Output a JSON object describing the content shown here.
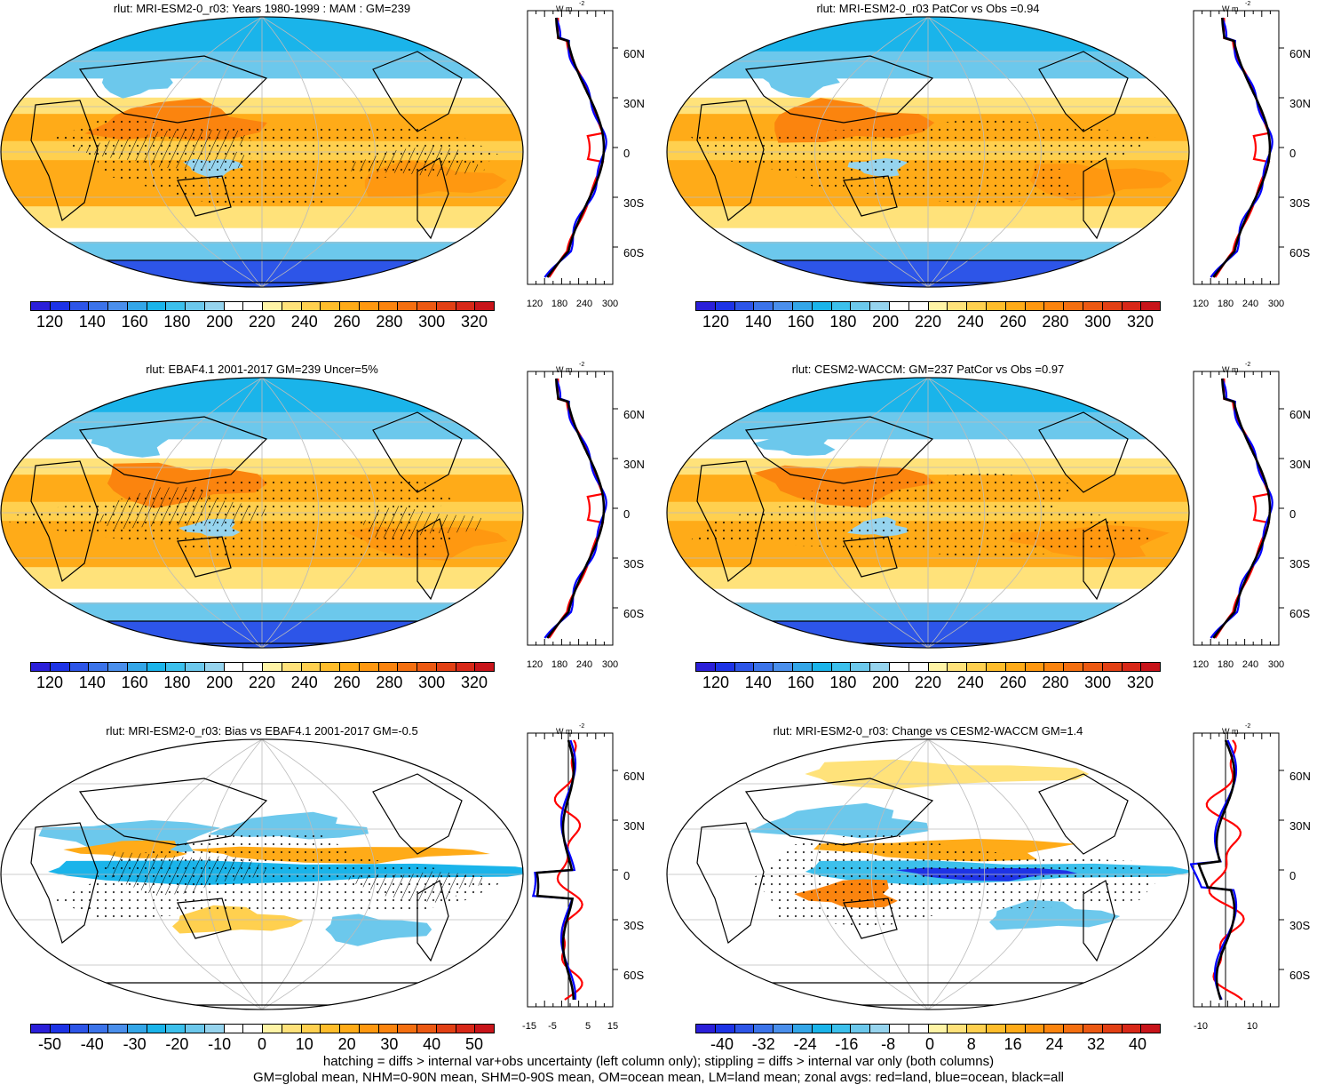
{
  "panels": [
    {
      "id": "p1",
      "title": "rlut: MRI-ESM2-0_r03: Years 1980-1999 : MAM : GM=239",
      "kind": "abs",
      "hatch": true
    },
    {
      "id": "p2",
      "title": "rlut: MRI-ESM2-0_r03 PatCor vs Obs =0.94",
      "kind": "abs",
      "hatch": false
    },
    {
      "id": "p3",
      "title": "rlut: EBAF4.1 2001-2017 GM=239 Uncer=5%",
      "kind": "abs",
      "hatch": true
    },
    {
      "id": "p4",
      "title": "rlut: CESM2-WACCM: GM=237 PatCor vs Obs =0.97",
      "kind": "abs",
      "hatch": false
    },
    {
      "id": "p5",
      "title": "rlut: MRI-ESM2-0_r03: Bias vs EBAF4.1 2001-2017 GM=-0.5",
      "kind": "diff",
      "hatch": true
    },
    {
      "id": "p6",
      "title": "rlut: MRI-ESM2-0_r03: Change vs CESM2-WACCM GM=1.4",
      "kind": "diff",
      "hatch": false
    }
  ],
  "colorbars": {
    "abs": {
      "labels": [
        "120",
        "140",
        "160",
        "180",
        "200",
        "220",
        "240",
        "260",
        "280",
        "300",
        "320"
      ],
      "colors": [
        "#2b1fd9",
        "#1d33e6",
        "#2d55e8",
        "#3b73ea",
        "#4a8fec",
        "#33a6e8",
        "#1ab4ea",
        "#3cc0ec",
        "#6cc8ec",
        "#96d4ee",
        "#ffffff",
        "#ffffff",
        "#fff4a6",
        "#ffe27a",
        "#ffd04f",
        "#ffbd2b",
        "#ffab18",
        "#ff9810",
        "#fb840e",
        "#f46f10",
        "#ec5912",
        "#e24014",
        "#d82818",
        "#c8141a"
      ]
    },
    "bias": {
      "labels": [
        "-50",
        "-40",
        "-30",
        "-20",
        "-10",
        "0",
        "10",
        "20",
        "30",
        "40",
        "50"
      ],
      "colors": [
        "#2b1fd9",
        "#1d33e6",
        "#2d55e8",
        "#3b73ea",
        "#4a8fec",
        "#33a6e8",
        "#1ab4ea",
        "#3cc0ec",
        "#6cc8ec",
        "#96d4ee",
        "#ffffff",
        "#ffffff",
        "#fff4a6",
        "#ffe27a",
        "#ffd04f",
        "#ffbd2b",
        "#ffab18",
        "#ff9810",
        "#fb840e",
        "#f46f10",
        "#ec5912",
        "#e24014",
        "#d82818",
        "#c8141a"
      ]
    },
    "change": {
      "labels": [
        "-40",
        "-32",
        "-24",
        "-16",
        "-8",
        "0",
        "8",
        "16",
        "24",
        "32",
        "40"
      ],
      "colors": [
        "#2b1fd9",
        "#1d33e6",
        "#2d55e8",
        "#3b73ea",
        "#4a8fec",
        "#33a6e8",
        "#1ab4ea",
        "#3cc0ec",
        "#6cc8ec",
        "#96d4ee",
        "#ffffff",
        "#ffffff",
        "#fff4a6",
        "#ffe27a",
        "#ffd04f",
        "#ffbd2b",
        "#ffab18",
        "#ff9810",
        "#fb840e",
        "#f46f10",
        "#ec5912",
        "#e24014",
        "#d82818",
        "#c8141a"
      ]
    }
  },
  "zonal": {
    "unit": "W m",
    "unit_exp": "-2",
    "lat_labels": [
      "60N",
      "30N",
      "0",
      "30S",
      "60S"
    ],
    "abs_ticks": [
      "120",
      "180",
      "240",
      "300"
    ],
    "bias_ticks": [
      "-15",
      "-5",
      "5",
      "15"
    ],
    "change_ticks": [
      "-10",
      "10"
    ],
    "series_colors": {
      "land": "#ff0000",
      "ocean": "#0000ff",
      "all": "#000000"
    }
  },
  "footer": {
    "line1": "hatching = diffs > internal var+obs uncertainty (left column only); stippling = diffs > internal var only (both columns)",
    "line2": "GM=global mean, NHM=0-90N mean, SHM=0-90S mean, OM=ocean mean, LM=land mean; zonal avgs: red=land, blue=ocean, black=all"
  }
}
